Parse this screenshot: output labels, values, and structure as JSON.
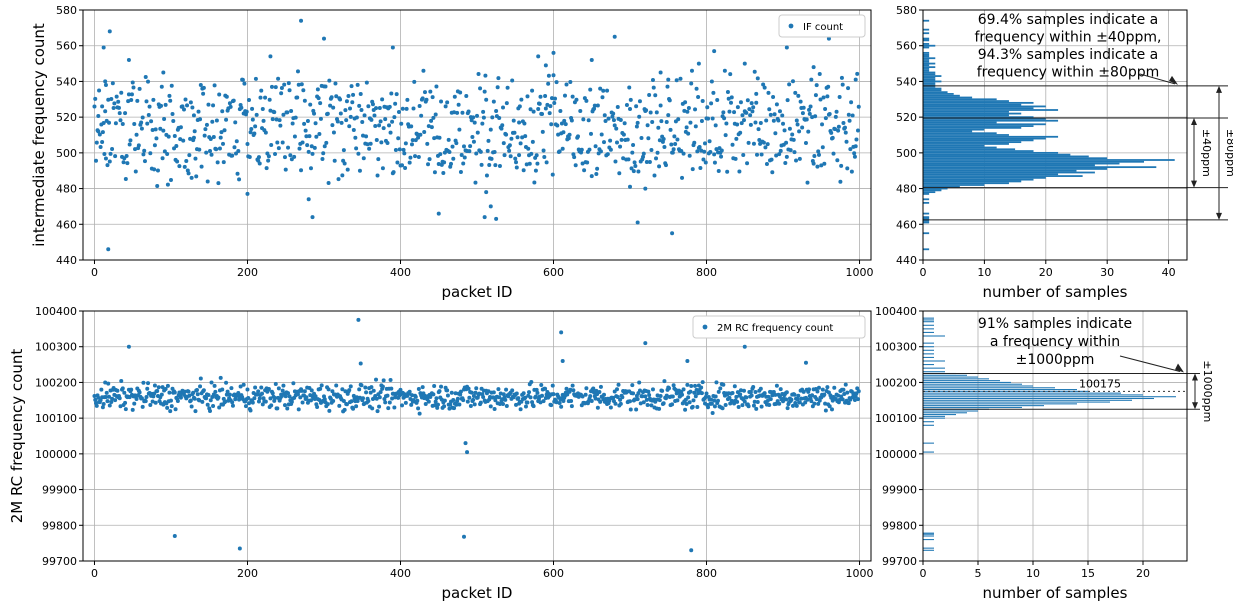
{
  "colors": {
    "series": "#1f77b4",
    "grid": "#b0b0b0",
    "axis": "#000000",
    "annot_line": "#222222",
    "dotted": "#333333"
  },
  "chart_data": [
    {
      "type": "scatter",
      "ylabel": "intermediate frequency count",
      "xlabel": "packet ID",
      "xlim": [
        -15,
        1015
      ],
      "ylim": [
        440,
        580
      ],
      "xticks": [
        0,
        200,
        400,
        600,
        800,
        1000
      ],
      "yticks": [
        440,
        460,
        480,
        500,
        520,
        540,
        560,
        580
      ],
      "xtick_labels": [
        "0",
        "200",
        "400",
        "600",
        "800",
        "1000"
      ],
      "ytick_labels": [
        "440",
        "460",
        "480",
        "500",
        "520",
        "540",
        "560",
        "580"
      ],
      "grid": true,
      "legend_position": "top-right",
      "series": [
        {
          "name": "IF count",
          "n": 1000,
          "center": 500,
          "mode_levels": [
            500,
            520,
            532
          ],
          "spread": 20,
          "outliers": [
            [
              5,
              512
            ],
            [
              10,
              526
            ],
            [
              12,
              559
            ],
            [
              14,
              540
            ],
            [
              15,
              538
            ],
            [
              20,
              568
            ],
            [
              18,
              446
            ],
            [
              45,
              552
            ],
            [
              90,
              545
            ],
            [
              130,
              521
            ],
            [
              200,
              477
            ],
            [
              230,
              554
            ],
            [
              270,
              574
            ],
            [
              280,
              474
            ],
            [
              285,
              464
            ],
            [
              300,
              564
            ],
            [
              390,
              559
            ],
            [
              450,
              466
            ],
            [
              510,
              464
            ],
            [
              512,
              478
            ],
            [
              518,
              470
            ],
            [
              525,
              463
            ],
            [
              555,
              517
            ],
            [
              580,
              554
            ],
            [
              590,
              549
            ],
            [
              600,
              556
            ],
            [
              650,
              552
            ],
            [
              680,
              565
            ],
            [
              700,
              481
            ],
            [
              710,
              461
            ],
            [
              720,
              480
            ],
            [
              740,
              545
            ],
            [
              750,
              541
            ],
            [
              755,
              455
            ],
            [
              790,
              550
            ],
            [
              810,
              557
            ],
            [
              850,
              550
            ],
            [
              865,
              533
            ],
            [
              905,
              559
            ],
            [
              940,
              548
            ],
            [
              960,
              564
            ],
            [
              995,
              541
            ]
          ]
        }
      ]
    },
    {
      "type": "bar",
      "orientation": "horizontal",
      "xlabel": "number of samples",
      "ylabel": "",
      "xlim": [
        0,
        43
      ],
      "ylim": [
        440,
        580
      ],
      "xticks": [
        0,
        10,
        20,
        30,
        40
      ],
      "yticks": [
        440,
        460,
        480,
        500,
        520,
        540,
        560,
        580
      ],
      "xtick_labels": [
        "0",
        "10",
        "20",
        "30",
        "40"
      ],
      "ytick_labels": [
        "440",
        "460",
        "480",
        "500",
        "520",
        "540",
        "560",
        "580"
      ],
      "grid": true,
      "bin_width": 1,
      "bins": [
        446,
        447,
        448,
        449,
        450,
        451,
        452,
        453,
        454,
        455,
        456,
        457,
        458,
        459,
        460,
        461,
        462,
        463,
        464,
        465,
        466,
        467,
        468,
        469,
        470,
        471,
        472,
        473,
        474,
        475,
        476,
        477,
        478,
        479,
        480,
        481,
        482,
        483,
        484,
        485,
        486,
        487,
        488,
        489,
        490,
        491,
        492,
        493,
        494,
        495,
        496,
        497,
        498,
        499,
        500,
        501,
        502,
        503,
        504,
        505,
        506,
        507,
        508,
        509,
        510,
        511,
        512,
        513,
        514,
        515,
        516,
        517,
        518,
        519,
        520,
        521,
        522,
        523,
        524,
        525,
        526,
        527,
        528,
        529,
        530,
        531,
        532,
        533,
        534,
        535,
        536,
        537,
        538,
        539,
        540,
        541,
        542,
        543,
        544,
        545,
        546,
        547,
        548,
        549,
        550,
        551,
        552,
        553,
        554,
        555,
        556,
        557,
        558,
        559,
        560,
        561,
        562,
        563,
        564,
        565,
        566,
        567,
        568,
        569,
        570,
        571,
        572,
        573,
        574
      ],
      "values": [
        1,
        0,
        0,
        0,
        0,
        0,
        0,
        0,
        0,
        1,
        0,
        0,
        0,
        0,
        0,
        1,
        1,
        1,
        1,
        0,
        1,
        0,
        0,
        0,
        0,
        0,
        1,
        0,
        1,
        0,
        0,
        1,
        2,
        3,
        4,
        6,
        10,
        14,
        16,
        18,
        20,
        26,
        22,
        28,
        25,
        30,
        38,
        28,
        32,
        36,
        41,
        30,
        27,
        24,
        22,
        18,
        15,
        12,
        10,
        14,
        16,
        18,
        20,
        22,
        14,
        12,
        8,
        10,
        16,
        18,
        20,
        12,
        22,
        20,
        18,
        14,
        16,
        14,
        22,
        18,
        20,
        16,
        18,
        14,
        12,
        8,
        6,
        5,
        4,
        3,
        3,
        2,
        2,
        2,
        3,
        2,
        2,
        3,
        2,
        2,
        1,
        1,
        2,
        1,
        2,
        1,
        1,
        2,
        1,
        1,
        1,
        0,
        0,
        1,
        2,
        1,
        0,
        1,
        1,
        0,
        0,
        1,
        0,
        1,
        0,
        0,
        0,
        0,
        1
      ],
      "annotations": [
        {
          "text_lines": [
            "69.4% samples indicate a",
            "frequency within ±40ppm,",
            "94.3% samples indicate a",
            "frequency within ±80ppm"
          ]
        },
        {
          "text": "±40ppm",
          "range": [
            480.5,
            519.5
          ]
        },
        {
          "text": "±80ppm",
          "range": [
            462.5,
            537.5
          ]
        }
      ]
    },
    {
      "type": "scatter",
      "ylabel": "2M RC frequency count",
      "xlabel": "packet ID",
      "xlim": [
        -15,
        1015
      ],
      "ylim": [
        99700,
        100400
      ],
      "xticks": [
        0,
        200,
        400,
        600,
        800,
        1000
      ],
      "yticks": [
        99700,
        99800,
        99900,
        100000,
        100100,
        100200,
        100300,
        100400
      ],
      "xtick_labels": [
        "0",
        "200",
        "400",
        "600",
        "800",
        "1000"
      ],
      "ytick_labels": [
        "99700",
        "99800",
        "99900",
        "100000",
        "100100",
        "100200",
        "100300",
        "100400"
      ],
      "grid": true,
      "legend_position": "top-right",
      "series": [
        {
          "name": "2M RC frequency count",
          "n": 1000,
          "center": 100160,
          "spread": 20,
          "outliers": [
            [
              45,
              100300
            ],
            [
              105,
              99770
            ],
            [
              190,
              99735
            ],
            [
              345,
              100375
            ],
            [
              348,
              100253
            ],
            [
              483,
              99768
            ],
            [
              485,
              100030
            ],
            [
              487,
              100005
            ],
            [
              610,
              100340
            ],
            [
              612,
              100260
            ],
            [
              720,
              100310
            ],
            [
              775,
              100260
            ],
            [
              780,
              99730
            ],
            [
              850,
              100300
            ],
            [
              860,
              100330
            ],
            [
              880,
              100335
            ],
            [
              930,
              100255
            ]
          ]
        }
      ]
    },
    {
      "type": "bar",
      "orientation": "horizontal",
      "xlabel": "number of samples",
      "ylabel": "",
      "xlim": [
        0,
        24
      ],
      "ylim": [
        99700,
        100400
      ],
      "xticks": [
        0,
        5,
        10,
        15,
        20
      ],
      "yticks": [
        99700,
        99800,
        99900,
        100000,
        100100,
        100200,
        100300,
        100400
      ],
      "xtick_labels": [
        "0",
        "5",
        "10",
        "15",
        "20"
      ],
      "ytick_labels": [
        "99700",
        "99800",
        "99900",
        "100000",
        "100100",
        "100200",
        "100300",
        "100400"
      ],
      "grid": true,
      "bin_width": 3,
      "bins": [
        99730,
        99736,
        99760,
        99770,
        99775,
        99778,
        100005,
        100030,
        100080,
        100090,
        100100,
        100105,
        100110,
        100115,
        100120,
        100125,
        100130,
        100135,
        100140,
        100145,
        100150,
        100155,
        100160,
        100165,
        100170,
        100175,
        100180,
        100185,
        100190,
        100195,
        100200,
        100205,
        100210,
        100215,
        100220,
        100225,
        100230,
        100240,
        100250,
        100260,
        100270,
        100280,
        100290,
        100300,
        100310,
        100330,
        100340,
        100350,
        100360,
        100370,
        100375,
        100380
      ],
      "values": [
        1,
        1,
        1,
        1,
        1,
        1,
        1,
        1,
        1,
        1,
        2,
        2,
        3,
        4,
        5,
        6,
        9,
        11,
        14,
        17,
        19,
        21,
        23,
        20,
        18,
        15,
        14,
        12,
        10,
        9,
        8,
        7,
        6,
        5,
        4,
        3,
        2,
        2,
        1,
        2,
        1,
        1,
        1,
        1,
        1,
        2,
        1,
        1,
        1,
        1,
        1,
        1
      ],
      "annotations": [
        {
          "text_lines": [
            "91% samples indicate",
            "a frequency within",
            "±1000ppm"
          ]
        },
        {
          "text": "100175",
          "value": 100175
        },
        {
          "text": "±1000ppm",
          "range": [
            100125,
            100225
          ]
        }
      ]
    }
  ]
}
